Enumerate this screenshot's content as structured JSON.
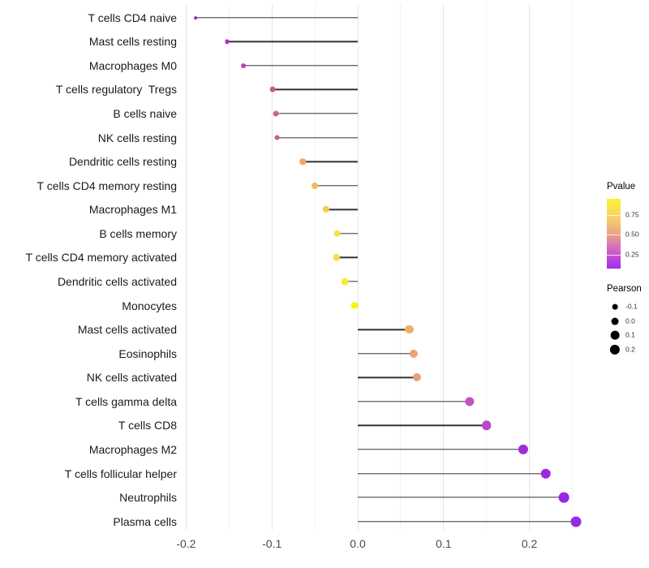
{
  "chart_data": {
    "type": "lollipop",
    "orientation": "horizontal",
    "title": "",
    "xlabel": "",
    "ylabel": "",
    "grid": "on",
    "xlim": [
      -0.207,
      0.27
    ],
    "x_axis": {
      "tick_labels": [
        "-0.2",
        "-0.1",
        "0.0",
        "0.1",
        "0.2"
      ],
      "tick_values": [
        -0.2,
        -0.1,
        0.0,
        0.1,
        0.2
      ],
      "minor_gridline_values": [
        -0.15,
        -0.05,
        0.05,
        0.15,
        0.25
      ],
      "baseline_value": 0.0
    },
    "rows": [
      {
        "label": "T cells CD4 naive",
        "pearson": -0.189,
        "color": "#9726BD"
      },
      {
        "label": "Mast cells resting",
        "pearson": -0.152,
        "color": "#B134C5"
      },
      {
        "label": "Macrophages M0",
        "pearson": -0.133,
        "color": "#C341BE"
      },
      {
        "label": "T cells regulatory  Tregs",
        "pearson": -0.099,
        "color": "#CC5B88"
      },
      {
        "label": "B cells naive",
        "pearson": -0.095,
        "color": "#CE6186"
      },
      {
        "label": "NK cells resting",
        "pearson": -0.094,
        "color": "#C75E87"
      },
      {
        "label": "Dendritic cells resting",
        "pearson": -0.064,
        "color": "#F0A566"
      },
      {
        "label": "T cells CD4 memory resting",
        "pearson": -0.05,
        "color": "#F3BA58"
      },
      {
        "label": "Macrophages M1",
        "pearson": -0.037,
        "color": "#F6CC4D"
      },
      {
        "label": "B cells memory",
        "pearson": -0.024,
        "color": "#F8DE49"
      },
      {
        "label": "T cells CD4 memory activated",
        "pearson": -0.025,
        "color": "#F8DD4A"
      },
      {
        "label": "Dendritic cells activated",
        "pearson": -0.015,
        "color": "#FAEA3C"
      },
      {
        "label": "Monocytes",
        "pearson": -0.004,
        "color": "#FDF403"
      },
      {
        "label": "Mast cells activated",
        "pearson": 0.06,
        "color": "#F0AC6E"
      },
      {
        "label": "Eosinophils",
        "pearson": 0.065,
        "color": "#EDA474"
      },
      {
        "label": "NK cells activated",
        "pearson": 0.069,
        "color": "#EB9F76"
      },
      {
        "label": "T cells gamma delta",
        "pearson": 0.13,
        "color": "#C553C1"
      },
      {
        "label": "T cells CD8",
        "pearson": 0.15,
        "color": "#BB44CE"
      },
      {
        "label": "Macrophages M2",
        "pearson": 0.193,
        "color": "#A02CDB"
      },
      {
        "label": "T cells follicular helper",
        "pearson": 0.219,
        "color": "#9C28E0"
      },
      {
        "label": "Neutrophils",
        "pearson": 0.24,
        "color": "#9A25E3"
      },
      {
        "label": "Plasma cells",
        "pearson": 0.254,
        "color": "#9C27E4"
      }
    ],
    "legend_pvalue": {
      "title": "Pvalue",
      "tick_labels": [
        "0.75",
        "0.50",
        "0.25"
      ],
      "tick_values": [
        0.75,
        0.5,
        0.25
      ],
      "gradient_stops": [
        "#FCF42C",
        "#F7D466",
        "#ECA383",
        "#CF5FC9",
        "#A32BF0"
      ],
      "bar_value_top": 0.96,
      "bar_value_bottom": 0.07
    },
    "legend_pearson": {
      "title": "Pearson",
      "items": [
        {
          "label": "-0.1",
          "value": -0.1
        },
        {
          "label": "0.0",
          "value": 0.0
        },
        {
          "label": "0.1",
          "value": 0.1
        },
        {
          "label": "0.2",
          "value": 0.2
        }
      ],
      "dot_color": "#000000"
    },
    "size_scale": {
      "p_min": -0.19,
      "p_max": 0.254,
      "r_min": 1.9,
      "r_max": 6.5
    },
    "colors": {
      "stem": "#333333",
      "gridline_major": "#e5e5e5",
      "gridline_minor": "#f2f2f2",
      "background": "#ffffff"
    }
  }
}
